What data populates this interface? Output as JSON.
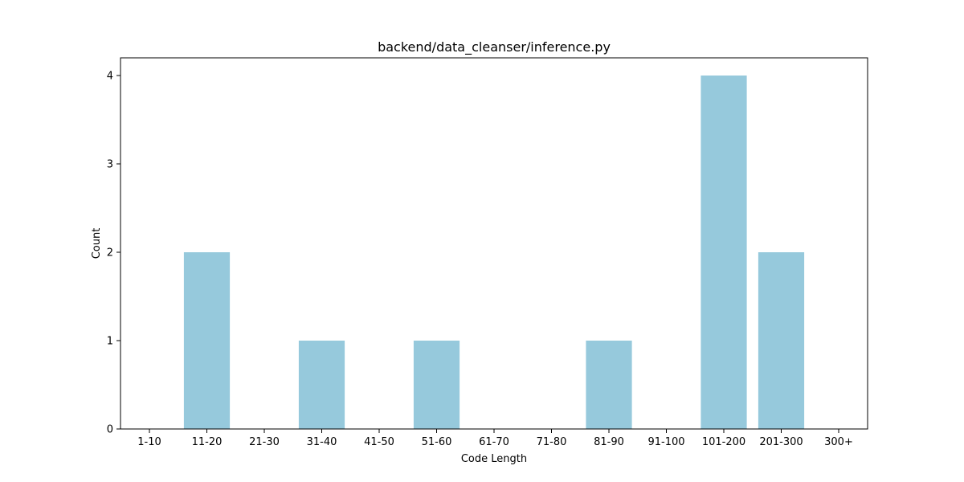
{
  "chart_data": {
    "type": "bar",
    "title": "backend/data_cleanser/inference.py",
    "xlabel": "Code Length",
    "ylabel": "Count",
    "categories": [
      "1-10",
      "11-20",
      "21-30",
      "31-40",
      "41-50",
      "51-60",
      "61-70",
      "71-80",
      "81-90",
      "91-100",
      "101-200",
      "201-300",
      "300+"
    ],
    "values": [
      0,
      2,
      0,
      1,
      0,
      1,
      0,
      0,
      1,
      0,
      4,
      2,
      0
    ],
    "ylim": [
      0,
      4.2
    ],
    "yticks": [
      0,
      1,
      2,
      3,
      4
    ],
    "bar_color": "#96c9dc",
    "grid": false,
    "legend": "none"
  }
}
